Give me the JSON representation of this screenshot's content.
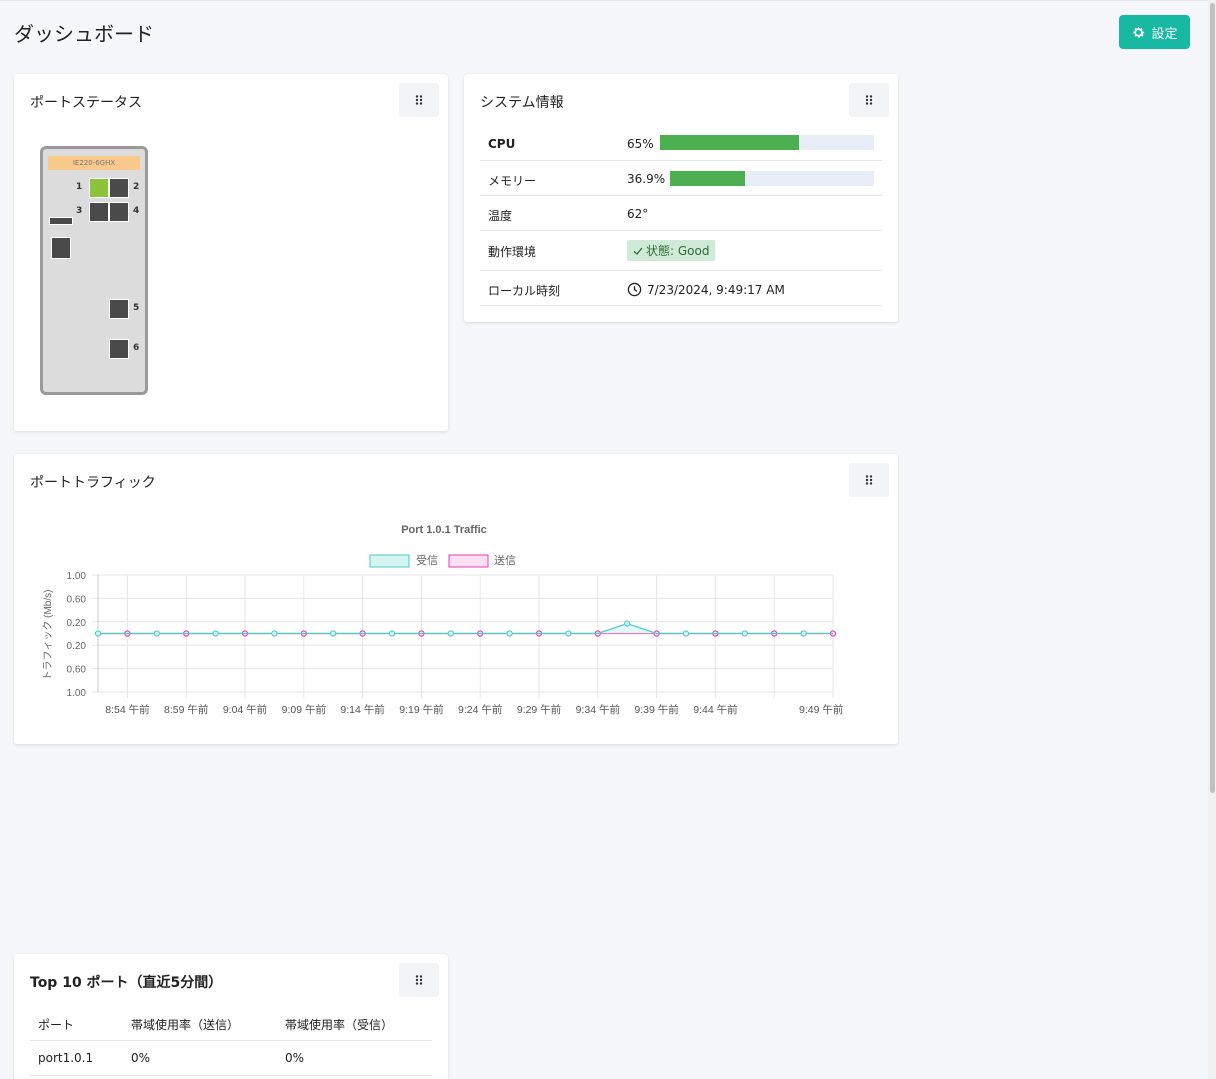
{
  "header": {
    "title": "ダッシュボード",
    "settings_label": "設定",
    "accent_color": "#17b9a3"
  },
  "port_status": {
    "title": "ポートステータス",
    "model": "IE220-6GHX",
    "ports": [
      {
        "num": "1",
        "state": "up"
      },
      {
        "num": "2",
        "state": "down"
      },
      {
        "num": "3",
        "state": "down"
      },
      {
        "num": "4",
        "state": "down"
      },
      {
        "num": "5",
        "state": "down"
      },
      {
        "num": "6",
        "state": "down"
      }
    ]
  },
  "system_info": {
    "title": "システム情報",
    "cpu_label": "CPU",
    "cpu_value": "65%",
    "cpu_fraction": 0.65,
    "memory_label": "メモリー",
    "memory_value": "36.9%",
    "memory_fraction": 0.369,
    "temp_label": "温度",
    "temp_value": "62°",
    "env_label": "動作環境",
    "env_value": "状態: Good",
    "time_label": "ローカル時刻",
    "time_value": "7/23/2024, 9:49:17 AM"
  },
  "port_traffic": {
    "title": "ポートトラフィック"
  },
  "chart_data": {
    "type": "line",
    "title": "Port 1.0.1 Traffic",
    "xlabel": "",
    "ylabel": "トラフィック (Mb/s)",
    "y_tick_labels": [
      "1.00",
      "0.60",
      "0.20",
      "0.20",
      "0.60",
      "1.00"
    ],
    "x_tick_labels": [
      "8:54 午前",
      "8:59 午前",
      "9:04 午前",
      "9:09 午前",
      "9:14 午前",
      "9:19 午前",
      "9:24 午前",
      "9:29 午前",
      "9:34 午前",
      "9:39 午前",
      "9:44 午前",
      "9:49 午前"
    ],
    "ylim": [
      -1,
      1
    ],
    "grid": true,
    "legend": "top",
    "series": [
      {
        "name": "受信",
        "color": "#4ecdc4",
        "fill": "#d4f5f2",
        "values": [
          0,
          0,
          0,
          0,
          0,
          0,
          0,
          0,
          0,
          0,
          0,
          0,
          0,
          0,
          0,
          0,
          0,
          0,
          0.17,
          0,
          0,
          0,
          0,
          0,
          0,
          0
        ]
      },
      {
        "name": "送信",
        "color": "#e040b0",
        "fill": "#fbe0f3",
        "values": [
          0,
          0,
          0,
          0,
          0,
          0,
          0,
          0,
          0,
          0,
          0,
          0,
          0,
          0,
          0,
          0,
          0,
          0,
          0,
          0,
          0,
          0,
          0,
          0,
          0,
          0
        ]
      }
    ]
  },
  "top10": {
    "title": "Top 10 ポート（直近5分間）",
    "columns": [
      "ポート",
      "帯域使用率（送信）",
      "帯域使用率（受信）"
    ],
    "rows": [
      [
        "port1.0.1",
        "0%",
        "0%"
      ]
    ]
  }
}
